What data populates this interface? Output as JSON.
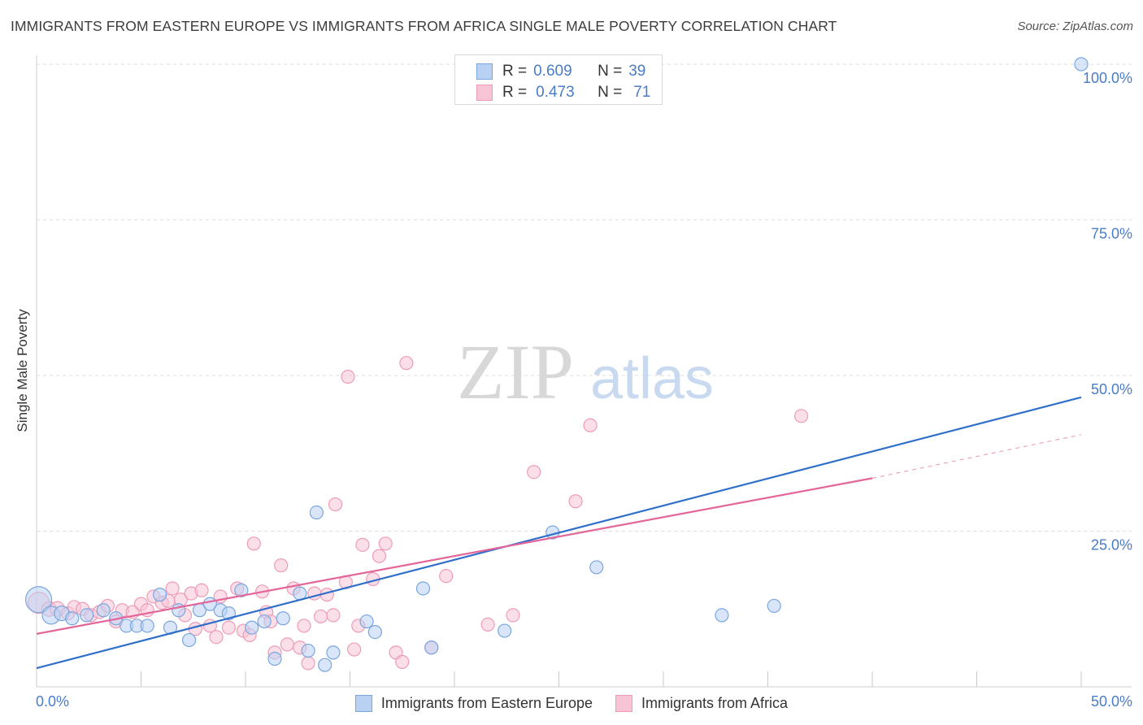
{
  "title": "IMMIGRANTS FROM EASTERN EUROPE VS IMMIGRANTS FROM AFRICA SINGLE MALE POVERTY CORRELATION CHART",
  "source": "Source: ZipAtlas.com",
  "watermark": {
    "zip": "ZIP",
    "atlas": "atlas"
  },
  "colors": {
    "blue_fill": "#b9d2f4",
    "blue_stroke": "#7aa6de",
    "blue_line": "#2f6fc9",
    "pink_fill": "#f7c4d5",
    "pink_stroke": "#ee9bb7",
    "pink_line": "#e3659a",
    "tick_text": "#4a7cc7",
    "grid": "#dcdcdc"
  },
  "legend_top": [
    {
      "series": "Immigrants from Eastern Europe",
      "r_label": "R =",
      "r_value": "0.609",
      "n_label": "N =",
      "n_value": "39"
    },
    {
      "series": "Immigrants from Africa",
      "r_label": "R =",
      "r_value": "0.473",
      "n_label": "N =",
      "n_value": "71"
    }
  ],
  "chart_data": {
    "type": "scatter",
    "title": "IMMIGRANTS FROM EASTERN EUROPE VS IMMIGRANTS FROM AFRICA SINGLE MALE POVERTY CORRELATION CHART",
    "xlabel": "",
    "ylabel": "Single Male Poverty",
    "xlim": [
      0,
      50
    ],
    "ylim": [
      0,
      100
    ],
    "x_tick_labels": [
      "0.0%",
      "50.0%"
    ],
    "y_tick_labels": [
      {
        "value": 25,
        "label": "25.0%"
      },
      {
        "value": 50,
        "label": "50.0%"
      },
      {
        "value": 75,
        "label": "75.0%"
      },
      {
        "value": 100,
        "label": "100.0%"
      }
    ],
    "legend_position": "bottom",
    "series": [
      {
        "name": "Immigrants from Eastern Europe",
        "color": "blue",
        "trend": {
          "x0": 0,
          "y0": 3.0,
          "x1": 50,
          "y1": 46.5
        },
        "points": [
          {
            "x": 0.1,
            "y": 14.0,
            "s": 16
          },
          {
            "x": 0.7,
            "y": 11.5,
            "s": 11
          },
          {
            "x": 1.2,
            "y": 11.8,
            "s": 9
          },
          {
            "x": 1.7,
            "y": 11.0,
            "s": 8
          },
          {
            "x": 2.4,
            "y": 11.5,
            "s": 8
          },
          {
            "x": 3.2,
            "y": 12.3,
            "s": 8
          },
          {
            "x": 3.8,
            "y": 11.0,
            "s": 8
          },
          {
            "x": 4.3,
            "y": 9.8,
            "s": 8
          },
          {
            "x": 4.8,
            "y": 9.8,
            "s": 8
          },
          {
            "x": 5.3,
            "y": 9.8,
            "s": 8
          },
          {
            "x": 5.9,
            "y": 14.8,
            "s": 8
          },
          {
            "x": 6.4,
            "y": 9.5,
            "s": 8
          },
          {
            "x": 6.8,
            "y": 12.3,
            "s": 8
          },
          {
            "x": 7.3,
            "y": 7.5,
            "s": 8
          },
          {
            "x": 7.8,
            "y": 12.3,
            "s": 8
          },
          {
            "x": 8.3,
            "y": 13.3,
            "s": 8
          },
          {
            "x": 8.8,
            "y": 12.3,
            "s": 8
          },
          {
            "x": 9.2,
            "y": 11.8,
            "s": 8
          },
          {
            "x": 9.8,
            "y": 15.5,
            "s": 8
          },
          {
            "x": 10.3,
            "y": 9.5,
            "s": 8
          },
          {
            "x": 10.9,
            "y": 10.5,
            "s": 8
          },
          {
            "x": 11.4,
            "y": 4.5,
            "s": 8
          },
          {
            "x": 11.8,
            "y": 11.0,
            "s": 8
          },
          {
            "x": 12.6,
            "y": 15.0,
            "s": 8
          },
          {
            "x": 13.0,
            "y": 5.8,
            "s": 8
          },
          {
            "x": 13.4,
            "y": 28.0,
            "s": 8
          },
          {
            "x": 13.8,
            "y": 3.5,
            "s": 8
          },
          {
            "x": 14.2,
            "y": 5.5,
            "s": 8
          },
          {
            "x": 15.8,
            "y": 10.5,
            "s": 8
          },
          {
            "x": 16.2,
            "y": 8.8,
            "s": 8
          },
          {
            "x": 18.5,
            "y": 15.8,
            "s": 8
          },
          {
            "x": 18.9,
            "y": 6.3,
            "s": 8
          },
          {
            "x": 22.4,
            "y": 9.0,
            "s": 8
          },
          {
            "x": 24.7,
            "y": 24.8,
            "s": 8
          },
          {
            "x": 26.8,
            "y": 19.2,
            "s": 8
          },
          {
            "x": 32.8,
            "y": 11.5,
            "s": 8
          },
          {
            "x": 35.3,
            "y": 13.0,
            "s": 8
          },
          {
            "x": 50.0,
            "y": 100.0,
            "s": 8
          }
        ]
      },
      {
        "name": "Immigrants from Africa",
        "color": "pink",
        "trend": {
          "x0": 0,
          "y0": 8.5,
          "x1": 40,
          "y1": 33.5,
          "dash_to_x": 50,
          "dash_to_y": 40.5
        },
        "points": [
          {
            "x": 0.1,
            "y": 13.5,
            "s": 13
          },
          {
            "x": 0.6,
            "y": 12.5,
            "s": 9
          },
          {
            "x": 1.0,
            "y": 12.5,
            "s": 9
          },
          {
            "x": 1.5,
            "y": 11.8,
            "s": 8
          },
          {
            "x": 1.8,
            "y": 12.8,
            "s": 8
          },
          {
            "x": 2.2,
            "y": 12.5,
            "s": 8
          },
          {
            "x": 2.6,
            "y": 11.5,
            "s": 8
          },
          {
            "x": 3.0,
            "y": 12.0,
            "s": 8
          },
          {
            "x": 3.4,
            "y": 13.0,
            "s": 8
          },
          {
            "x": 3.8,
            "y": 10.5,
            "s": 8
          },
          {
            "x": 4.1,
            "y": 12.3,
            "s": 8
          },
          {
            "x": 4.6,
            "y": 12.0,
            "s": 8
          },
          {
            "x": 5.0,
            "y": 13.3,
            "s": 8
          },
          {
            "x": 5.3,
            "y": 12.3,
            "s": 8
          },
          {
            "x": 5.6,
            "y": 14.5,
            "s": 8
          },
          {
            "x": 6.0,
            "y": 13.5,
            "s": 8
          },
          {
            "x": 6.3,
            "y": 13.8,
            "s": 8
          },
          {
            "x": 6.5,
            "y": 15.8,
            "s": 8
          },
          {
            "x": 6.9,
            "y": 14.0,
            "s": 8
          },
          {
            "x": 7.1,
            "y": 11.5,
            "s": 8
          },
          {
            "x": 7.4,
            "y": 15.0,
            "s": 8
          },
          {
            "x": 7.6,
            "y": 9.3,
            "s": 8
          },
          {
            "x": 7.9,
            "y": 15.5,
            "s": 8
          },
          {
            "x": 8.3,
            "y": 9.8,
            "s": 8
          },
          {
            "x": 8.6,
            "y": 8.0,
            "s": 8
          },
          {
            "x": 8.8,
            "y": 14.5,
            "s": 8
          },
          {
            "x": 9.2,
            "y": 9.5,
            "s": 8
          },
          {
            "x": 9.6,
            "y": 15.8,
            "s": 8
          },
          {
            "x": 9.9,
            "y": 9.0,
            "s": 8
          },
          {
            "x": 10.2,
            "y": 8.3,
            "s": 8
          },
          {
            "x": 10.4,
            "y": 23.0,
            "s": 8
          },
          {
            "x": 10.8,
            "y": 15.3,
            "s": 8
          },
          {
            "x": 11.0,
            "y": 12.0,
            "s": 8
          },
          {
            "x": 11.2,
            "y": 10.5,
            "s": 8
          },
          {
            "x": 11.4,
            "y": 5.5,
            "s": 8
          },
          {
            "x": 11.7,
            "y": 19.5,
            "s": 8
          },
          {
            "x": 12.0,
            "y": 6.8,
            "s": 8
          },
          {
            "x": 12.3,
            "y": 15.8,
            "s": 8
          },
          {
            "x": 12.6,
            "y": 6.3,
            "s": 8
          },
          {
            "x": 12.8,
            "y": 9.8,
            "s": 8
          },
          {
            "x": 13.0,
            "y": 3.8,
            "s": 8
          },
          {
            "x": 13.3,
            "y": 15.0,
            "s": 8
          },
          {
            "x": 13.6,
            "y": 11.3,
            "s": 8
          },
          {
            "x": 13.9,
            "y": 14.8,
            "s": 8
          },
          {
            "x": 14.2,
            "y": 11.5,
            "s": 8
          },
          {
            "x": 14.3,
            "y": 29.3,
            "s": 8
          },
          {
            "x": 14.8,
            "y": 16.8,
            "s": 8
          },
          {
            "x": 14.9,
            "y": 49.8,
            "s": 8
          },
          {
            "x": 15.2,
            "y": 6.0,
            "s": 8
          },
          {
            "x": 15.4,
            "y": 9.8,
            "s": 8
          },
          {
            "x": 15.6,
            "y": 22.8,
            "s": 8
          },
          {
            "x": 16.1,
            "y": 17.3,
            "s": 8
          },
          {
            "x": 16.4,
            "y": 21.0,
            "s": 8
          },
          {
            "x": 16.7,
            "y": 23.0,
            "s": 8
          },
          {
            "x": 17.2,
            "y": 5.5,
            "s": 8
          },
          {
            "x": 17.5,
            "y": 4.0,
            "s": 8
          },
          {
            "x": 17.7,
            "y": 52.0,
            "s": 8
          },
          {
            "x": 18.9,
            "y": 6.3,
            "s": 8
          },
          {
            "x": 19.6,
            "y": 17.8,
            "s": 8
          },
          {
            "x": 21.6,
            "y": 10.0,
            "s": 8
          },
          {
            "x": 22.8,
            "y": 11.5,
            "s": 8
          },
          {
            "x": 23.8,
            "y": 34.5,
            "s": 8
          },
          {
            "x": 25.8,
            "y": 29.8,
            "s": 8
          },
          {
            "x": 26.5,
            "y": 42.0,
            "s": 8
          },
          {
            "x": 36.6,
            "y": 43.5,
            "s": 8
          }
        ]
      }
    ]
  },
  "legend_bottom": [
    {
      "label": "Immigrants from Eastern Europe",
      "color": "blue"
    },
    {
      "label": "Immigrants from Africa",
      "color": "pink"
    }
  ]
}
